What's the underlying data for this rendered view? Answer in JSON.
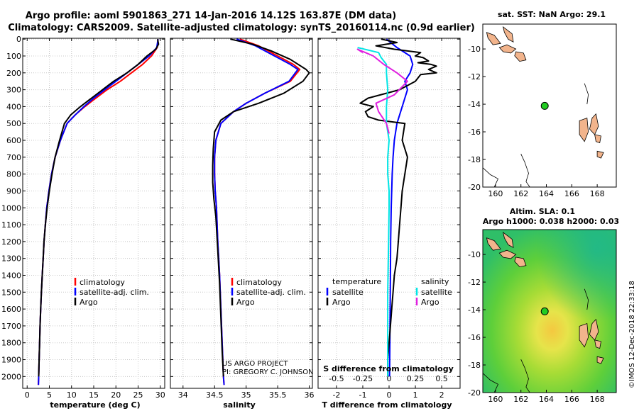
{
  "title": {
    "line1": "Argo profile: aoml 5901863_271 14-Jan-2016 14.12S 163.87E (DM data)",
    "line2": "Climatology: CARS2009. Satellite-adjusted climatology: synTS_20160114.nc (0.9d earlier)"
  },
  "colors": {
    "climatology": "#ff0000",
    "satellite": "#0000ff",
    "argo": "#000000",
    "sal_satellite": "#00e5e5",
    "sal_argo": "#e020e0"
  },
  "depth_ticks": [
    "0",
    "100",
    "200",
    "300",
    "400",
    "500",
    "600",
    "700",
    "800",
    "900",
    "1000",
    "1100",
    "1200",
    "1300",
    "1400",
    "1500",
    "1600",
    "1700",
    "1800",
    "1900",
    "2000"
  ],
  "chart_data": [
    {
      "type": "line",
      "xlabel": "temperature (deg C)",
      "xticks": [
        "0",
        "5",
        "10",
        "15",
        "20",
        "25",
        "30"
      ],
      "xlim": [
        -1,
        31
      ],
      "ylim": [
        2070,
        -5
      ],
      "legend": {
        "placement": "bottom-center",
        "entries": [
          "climatology",
          "satellite-adj. clim.",
          "Argo"
        ]
      },
      "series": [
        {
          "name": "climatology",
          "color": "#ff0000",
          "points": [
            [
              29.5,
              0
            ],
            [
              29.3,
              50
            ],
            [
              28,
              100
            ],
            [
              26,
              150
            ],
            [
              23.5,
              200
            ],
            [
              21,
              250
            ],
            [
              18,
              300
            ],
            [
              15.5,
              350
            ],
            [
              13,
              400
            ],
            [
              10.8,
              450
            ],
            [
              9,
              500
            ],
            [
              7.5,
              600
            ],
            [
              6.3,
              700
            ],
            [
              5.5,
              800
            ],
            [
              4.9,
              900
            ],
            [
              4.4,
              1000
            ],
            [
              4.1,
              1100
            ],
            [
              3.8,
              1200
            ],
            [
              3.6,
              1300
            ],
            [
              3.4,
              1400
            ],
            [
              3.2,
              1500
            ],
            [
              3.05,
              1600
            ],
            [
              2.9,
              1700
            ],
            [
              2.8,
              1800
            ],
            [
              2.7,
              1900
            ],
            [
              2.6,
              2000
            ],
            [
              2.5,
              2050
            ]
          ]
        },
        {
          "name": "satellite-adj. clim.",
          "color": "#0000ff",
          "points": [
            [
              29.5,
              0
            ],
            [
              29.2,
              50
            ],
            [
              27.5,
              100
            ],
            [
              25,
              150
            ],
            [
              22.5,
              200
            ],
            [
              20,
              250
            ],
            [
              17.5,
              300
            ],
            [
              15,
              350
            ],
            [
              12.8,
              400
            ],
            [
              10.8,
              450
            ],
            [
              9,
              500
            ],
            [
              7.5,
              600
            ],
            [
              6.3,
              700
            ],
            [
              5.5,
              800
            ],
            [
              4.9,
              900
            ],
            [
              4.4,
              1000
            ],
            [
              4.1,
              1100
            ],
            [
              3.8,
              1200
            ],
            [
              3.6,
              1300
            ],
            [
              3.4,
              1400
            ],
            [
              3.2,
              1500
            ],
            [
              3.05,
              1600
            ],
            [
              2.9,
              1700
            ],
            [
              2.8,
              1800
            ],
            [
              2.7,
              1900
            ],
            [
              2.6,
              2000
            ],
            [
              2.55,
              2050
            ]
          ]
        },
        {
          "name": "Argo",
          "color": "#000000",
          "points": [
            [
              29.4,
              0
            ],
            [
              29.6,
              30
            ],
            [
              29,
              60
            ],
            [
              27,
              100
            ],
            [
              25,
              150
            ],
            [
              22.5,
              200
            ],
            [
              19.5,
              250
            ],
            [
              17,
              300
            ],
            [
              14.5,
              350
            ],
            [
              12,
              400
            ],
            [
              9.8,
              450
            ],
            [
              8.4,
              500
            ],
            [
              7.3,
              600
            ],
            [
              6.3,
              700
            ],
            [
              5.6,
              800
            ],
            [
              5,
              900
            ],
            [
              4.5,
              1000
            ],
            [
              4.1,
              1100
            ],
            [
              3.8,
              1200
            ],
            [
              3.6,
              1300
            ],
            [
              3.4,
              1400
            ],
            [
              3.2,
              1500
            ],
            [
              3.05,
              1600
            ],
            [
              2.9,
              1700
            ],
            [
              2.8,
              1800
            ],
            [
              2.7,
              1900
            ],
            [
              2.6,
              2000
            ]
          ]
        }
      ]
    },
    {
      "type": "line",
      "xlabel": "salinity",
      "xticks": [
        "34",
        "34.5",
        "35",
        "35.5",
        "36"
      ],
      "xlim": [
        33.8,
        36.05
      ],
      "ylim": [
        2070,
        -5
      ],
      "legend": {
        "placement": "bottom-center",
        "entries": [
          "climatology",
          "satellite-adj. clim.",
          "Argo"
        ]
      },
      "series": [
        {
          "name": "climatology",
          "color": "#ff0000",
          "points": [
            [
              34.9,
              0
            ],
            [
              35.2,
              40
            ],
            [
              35.5,
              100
            ],
            [
              35.75,
              150
            ],
            [
              35.85,
              180
            ],
            [
              35.7,
              250
            ],
            [
              35.3,
              320
            ],
            [
              35.0,
              380
            ],
            [
              34.8,
              430
            ],
            [
              34.6,
              500
            ],
            [
              34.52,
              600
            ],
            [
              34.5,
              700
            ],
            [
              34.5,
              800
            ],
            [
              34.51,
              900
            ],
            [
              34.53,
              1000
            ],
            [
              34.55,
              1200
            ],
            [
              34.58,
              1400
            ],
            [
              34.6,
              1600
            ],
            [
              34.62,
              1800
            ],
            [
              34.64,
              2000
            ],
            [
              34.65,
              2050
            ]
          ]
        },
        {
          "name": "satellite-adj. clim.",
          "color": "#0000ff",
          "points": [
            [
              34.85,
              0
            ],
            [
              35.15,
              40
            ],
            [
              35.45,
              100
            ],
            [
              35.7,
              150
            ],
            [
              35.82,
              180
            ],
            [
              35.68,
              250
            ],
            [
              35.3,
              320
            ],
            [
              35.0,
              380
            ],
            [
              34.8,
              430
            ],
            [
              34.6,
              500
            ],
            [
              34.52,
              600
            ],
            [
              34.5,
              700
            ],
            [
              34.5,
              800
            ],
            [
              34.51,
              900
            ],
            [
              34.53,
              1000
            ],
            [
              34.55,
              1200
            ],
            [
              34.58,
              1400
            ],
            [
              34.6,
              1600
            ],
            [
              34.62,
              1800
            ],
            [
              34.64,
              2000
            ],
            [
              34.65,
              2050
            ]
          ]
        },
        {
          "name": "Argo",
          "color": "#000000",
          "points": [
            [
              34.75,
              0
            ],
            [
              35.1,
              30
            ],
            [
              35.4,
              70
            ],
            [
              35.7,
              120
            ],
            [
              35.95,
              180
            ],
            [
              36.0,
              200
            ],
            [
              35.9,
              250
            ],
            [
              35.6,
              320
            ],
            [
              35.2,
              380
            ],
            [
              34.8,
              430
            ],
            [
              34.6,
              480
            ],
            [
              34.5,
              550
            ],
            [
              34.48,
              650
            ],
            [
              34.47,
              750
            ],
            [
              34.47,
              850
            ],
            [
              34.49,
              950
            ],
            [
              34.52,
              1050
            ],
            [
              34.55,
              1250
            ],
            [
              34.58,
              1450
            ],
            [
              34.6,
              1650
            ],
            [
              34.62,
              1850
            ],
            [
              34.64,
              2000
            ]
          ]
        }
      ]
    },
    {
      "type": "line",
      "xlabel": "T difference from climatology",
      "xlabel2": "S difference from climatology",
      "xticks": [
        "-2",
        "-1",
        "0",
        "1",
        "2"
      ],
      "xticks2": [
        "-0.5",
        "-0.25",
        "0",
        "0.25",
        "0.5"
      ],
      "xlim": [
        -2.7,
        2.7
      ],
      "ylim": [
        2070,
        -5
      ],
      "legend": {
        "placement": "bottom",
        "left_title": "temperature",
        "right_title": "salinity",
        "left_entries": [
          "satellite",
          "Argo"
        ],
        "right_entries": [
          "satellite",
          "Argo"
        ]
      },
      "series": [
        {
          "name": "satellite",
          "color": "#0000ff",
          "points": [
            [
              -0.1,
              0
            ],
            [
              0.3,
              50
            ],
            [
              0.8,
              100
            ],
            [
              0.9,
              150
            ],
            [
              0.8,
              200
            ],
            [
              0.6,
              250
            ],
            [
              0.7,
              300
            ],
            [
              0.6,
              350
            ],
            [
              0.5,
              400
            ],
            [
              0.4,
              450
            ],
            [
              0.3,
              500
            ],
            [
              0.2,
              600
            ],
            [
              0.15,
              700
            ],
            [
              0.12,
              800
            ],
            [
              0.1,
              900
            ],
            [
              0.08,
              1000
            ],
            [
              0.06,
              1200
            ],
            [
              0.05,
              1400
            ],
            [
              0.04,
              1600
            ],
            [
              0.03,
              1800
            ],
            [
              0.02,
              2000
            ]
          ]
        },
        {
          "name": "Argo",
          "color": "#000000",
          "points": [
            [
              -0.3,
              0
            ],
            [
              0.3,
              20
            ],
            [
              -0.5,
              40
            ],
            [
              0.2,
              60
            ],
            [
              1.2,
              80
            ],
            [
              1.0,
              100
            ],
            [
              1.3,
              110
            ],
            [
              1.5,
              130
            ],
            [
              1.1,
              140
            ],
            [
              1.6,
              150
            ],
            [
              1.8,
              160
            ],
            [
              1.5,
              180
            ],
            [
              1.8,
              200
            ],
            [
              1.2,
              210
            ],
            [
              1.0,
              250
            ],
            [
              0.4,
              300
            ],
            [
              -0.8,
              350
            ],
            [
              -1.1,
              380
            ],
            [
              -0.6,
              400
            ],
            [
              -0.9,
              430
            ],
            [
              -0.8,
              460
            ],
            [
              -0.4,
              480
            ],
            [
              0.6,
              500
            ],
            [
              0.5,
              600
            ],
            [
              0.7,
              700
            ],
            [
              0.6,
              800
            ],
            [
              0.5,
              900
            ],
            [
              0.45,
              1000
            ],
            [
              0.4,
              1100
            ],
            [
              0.35,
              1200
            ],
            [
              0.3,
              1300
            ],
            [
              0.2,
              1400
            ],
            [
              0.15,
              1500
            ],
            [
              0.1,
              1600
            ],
            [
              0.05,
              1700
            ],
            [
              0.0,
              1800
            ],
            [
              -0.05,
              1900
            ],
            [
              -0.05,
              2000
            ]
          ]
        },
        {
          "name": "satellite (salinity)",
          "color": "#00e5e5",
          "points": [
            [
              -1.2,
              50
            ],
            [
              -0.4,
              80
            ],
            [
              -0.3,
              110
            ],
            [
              -0.1,
              150
            ],
            [
              -0.1,
              200
            ],
            [
              -0.05,
              300
            ],
            [
              -0.1,
              400
            ],
            [
              -0.1,
              500
            ],
            [
              0.0,
              600
            ],
            [
              -0.05,
              700
            ],
            [
              -0.05,
              800
            ],
            [
              0.0,
              900
            ],
            [
              0.0,
              1000
            ],
            [
              -0.02,
              1200
            ],
            [
              -0.05,
              1500
            ],
            [
              -0.05,
              1800
            ],
            [
              -0.05,
              2000
            ]
          ]
        },
        {
          "name": "Argo (salinity)",
          "color": "#e020e0",
          "points": [
            [
              -1.0,
              80
            ],
            [
              -1.2,
              60
            ],
            [
              -0.6,
              100
            ],
            [
              -0.2,
              150
            ],
            [
              0.3,
              200
            ],
            [
              0.7,
              250
            ],
            [
              0.2,
              330
            ],
            [
              -0.5,
              380
            ],
            [
              -0.4,
              430
            ],
            [
              -0.1,
              500
            ],
            [
              0.0,
              560
            ]
          ]
        }
      ]
    }
  ],
  "map_top": {
    "title": "sat. SST: NaN Argo: 29.1",
    "xticks": [
      "160",
      "162",
      "164",
      "166",
      "168"
    ],
    "yticks": [
      "-10",
      "-12",
      "-14",
      "-16",
      "-18",
      "-20"
    ],
    "xlim": [
      159,
      169.5
    ],
    "ylim": [
      -20,
      -8.2
    ],
    "marker": [
      163.87,
      -14.12
    ]
  },
  "map_bottom": {
    "title1": "Altim. SLA: 0.1",
    "title2": "Argo h1000: 0.038 h2000: 0.03",
    "xticks": [
      "160",
      "162",
      "164",
      "166",
      "168"
    ],
    "yticks": [
      "-10",
      "-12",
      "-14",
      "-16",
      "-18",
      "-20"
    ],
    "xlim": [
      159,
      169.5
    ],
    "ylim": [
      -20,
      -8.2
    ],
    "marker": [
      163.87,
      -14.12
    ]
  },
  "credit": {
    "line1": "US ARGO PROJECT",
    "line2": "PI: GREGORY C. JOHNSON"
  },
  "stamp": "©IMOS 12-Dec-2018 22:33:18"
}
